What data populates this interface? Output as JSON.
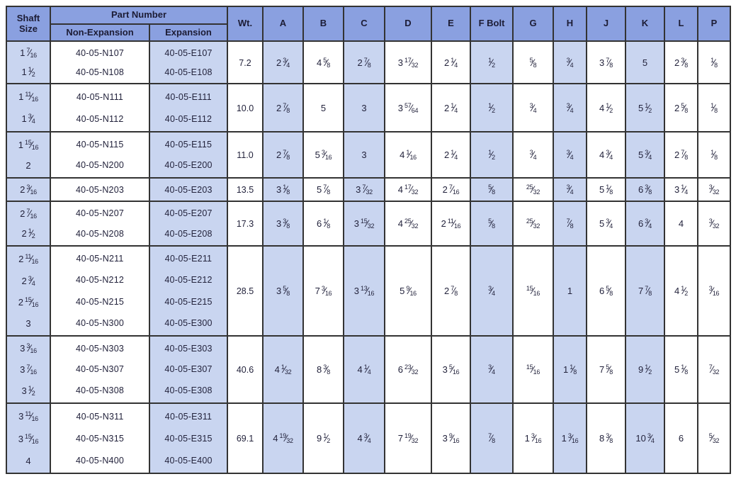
{
  "colors": {
    "header_bg": "#8aa0e0",
    "shaded_cell_bg": "#c9d5f0",
    "border": "#333333",
    "text": "#23233c"
  },
  "table": {
    "header": {
      "shaft_size": "Shaft Size",
      "part_number": "Part Number",
      "non_expansion": "Non-Expansion",
      "expansion": "Expansion",
      "wt": "Wt.",
      "dims": [
        "A",
        "B",
        "C",
        "D",
        "E",
        "F Bolt",
        "G",
        "H",
        "J",
        "K",
        "L",
        "P"
      ]
    },
    "shaded_dim_columns": [
      0,
      2,
      5,
      7,
      9
    ],
    "groups": [
      {
        "shaft_sizes": [
          "1 7/16",
          "1 1/2"
        ],
        "non_expansion": [
          "40-05-N107",
          "40-05-N108"
        ],
        "expansion": [
          "40-05-E107",
          "40-05-E108"
        ],
        "wt": "7.2",
        "dims": [
          "2 3/4",
          "4 5/8",
          "2 7/8",
          "3 17/32",
          "2 1/4",
          "1/2",
          "5/8",
          "3/4",
          "3 7/8",
          "5",
          "2 3/8",
          "1/8"
        ]
      },
      {
        "shaft_sizes": [
          "1 11/16",
          "1 3/4"
        ],
        "non_expansion": [
          "40-05-N111",
          "40-05-N112"
        ],
        "expansion": [
          "40-05-E111",
          "40-05-E112"
        ],
        "wt": "10.0",
        "dims": [
          "2 7/8",
          "5",
          "3",
          "3 57/64",
          "2 1/4",
          "1/2",
          "3/4",
          "3/4",
          "4 1/2",
          "5 1/2",
          "2 5/8",
          "1/8"
        ]
      },
      {
        "shaft_sizes": [
          "1 15/16",
          "2"
        ],
        "non_expansion": [
          "40-05-N115",
          "40-05-N200"
        ],
        "expansion": [
          "40-05-E115",
          "40-05-E200"
        ],
        "wt": "11.0",
        "dims": [
          "2 7/8",
          "5 3/16",
          "3",
          "4 1/16",
          "2 1/4",
          "1/2",
          "3/4",
          "3/4",
          "4 3/4",
          "5 3/4",
          "2 7/8",
          "1/8"
        ]
      },
      {
        "shaft_sizes": [
          "2 3/16"
        ],
        "non_expansion": [
          "40-05-N203"
        ],
        "expansion": [
          "40-05-E203"
        ],
        "wt": "13.5",
        "dims": [
          "3 1/8",
          "5 7/8",
          "3 7/32",
          "4 17/32",
          "2 7/16",
          "5/8",
          "25/32",
          "3/4",
          "5 1/8",
          "6 3/8",
          "3 1/4",
          "3/32"
        ]
      },
      {
        "shaft_sizes": [
          "2 7/16",
          "2 1/2"
        ],
        "non_expansion": [
          "40-05-N207",
          "40-05-N208"
        ],
        "expansion": [
          "40-05-E207",
          "40-05-E208"
        ],
        "wt": "17.3",
        "dims": [
          "3 3/8",
          "6 1/8",
          "3 15/32",
          "4 25/32",
          "2 11/16",
          "5/8",
          "25/32",
          "7/8",
          "5 3/4",
          "6 3/4",
          "4",
          "3/32"
        ]
      },
      {
        "shaft_sizes": [
          "2 11/16",
          "2 3/4",
          "2 15/16",
          "3"
        ],
        "non_expansion": [
          "40-05-N211",
          "40-05-N212",
          "40-05-N215",
          "40-05-N300"
        ],
        "expansion": [
          "40-05-E211",
          "40-05-E212",
          "40-05-E215",
          "40-05-E300"
        ],
        "wt": "28.5",
        "dims": [
          "3 5/8",
          "7 3/16",
          "3 13/16",
          "5 9/16",
          "2 7/8",
          "3/4",
          "15/16",
          "1",
          "6 5/8",
          "7 7/8",
          "4 1/2",
          "3/16"
        ]
      },
      {
        "shaft_sizes": [
          "3 3/16",
          "3 7/16",
          "3 1/2"
        ],
        "non_expansion": [
          "40-05-N303",
          "40-05-N307",
          "40-05-N308"
        ],
        "expansion": [
          "40-05-E303",
          "40-05-E307",
          "40-05-E308"
        ],
        "wt": "40.6",
        "dims": [
          "4 1/32",
          "8 3/8",
          "4 1/4",
          "6 23/32",
          "3 5/16",
          "3/4",
          "15/16",
          "1 1/8",
          "7 5/8",
          "9 1/2",
          "5 1/8",
          "7/32"
        ]
      },
      {
        "shaft_sizes": [
          "3 11/16",
          "3 15/16",
          "4"
        ],
        "non_expansion": [
          "40-05-N311",
          "40-05-N315",
          "40-05-N400"
        ],
        "expansion": [
          "40-05-E311",
          "40-05-E315",
          "40-05-E400"
        ],
        "wt": "69.1",
        "dims": [
          "4 19/32",
          "9 1/2",
          "4 3/4",
          "7 19/32",
          "3 9/16",
          "7/8",
          "1 3/16",
          "1 3/16",
          "8 3/8",
          "10 3/4",
          "6",
          "5/32"
        ]
      }
    ]
  }
}
